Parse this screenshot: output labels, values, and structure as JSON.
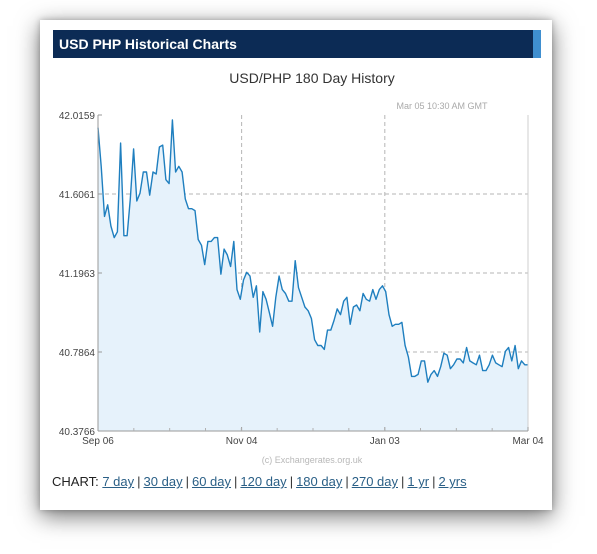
{
  "header": {
    "title": "USD PHP Historical Charts"
  },
  "chart_data": {
    "type": "area",
    "title": "USD/PHP  180 Day History",
    "timestamp": "Mar 05  10:30 AM GMT",
    "watermark": "(c) Exchangerates.org.uk",
    "x_tick_labels": [
      "Sep 06",
      "Nov 04",
      "Jan 03",
      "Mar 04"
    ],
    "y_tick_labels": [
      "42.0159",
      "41.6061",
      "41.1963",
      "40.7864",
      "40.3766"
    ],
    "ylim": [
      40.3766,
      42.0159
    ],
    "grid": true,
    "colors": {
      "line": "#1f7fbf",
      "fill": "#e6f2fb",
      "grid": "#b5b5b5"
    },
    "series": [
      {
        "values": [
          41.95,
          41.75,
          41.49,
          41.55,
          41.44,
          41.38,
          41.41,
          41.87,
          41.39,
          41.39,
          41.58,
          41.84,
          41.57,
          41.61,
          41.72,
          41.72,
          41.6,
          41.72,
          41.71,
          41.85,
          41.86,
          41.68,
          41.66,
          41.99,
          41.72,
          41.75,
          41.72,
          41.58,
          41.53,
          41.53,
          41.52,
          41.37,
          41.34,
          41.24,
          41.36,
          41.36,
          41.38,
          41.38,
          41.19,
          41.32,
          41.29,
          41.23,
          41.36,
          41.11,
          41.06,
          41.16,
          41.2,
          41.18,
          41.07,
          41.13,
          40.89,
          41.1,
          41.06,
          40.99,
          40.92,
          41.07,
          41.18,
          41.11,
          41.09,
          41.05,
          41.05,
          41.26,
          41.12,
          41.07,
          41.02,
          41.0,
          40.96,
          40.85,
          40.82,
          40.82,
          40.8,
          40.9,
          40.9,
          40.95,
          41.01,
          40.98,
          41.05,
          41.07,
          40.93,
          41.02,
          41.03,
          41.0,
          41.09,
          41.06,
          41.05,
          41.11,
          41.06,
          41.11,
          41.13,
          41.1,
          40.98,
          40.92,
          40.93,
          40.93,
          40.94,
          40.82,
          40.76,
          40.66,
          40.66,
          40.67,
          40.74,
          40.74,
          40.63,
          40.67,
          40.69,
          40.66,
          40.71,
          40.78,
          40.77,
          40.7,
          40.72,
          40.75,
          40.75,
          40.73,
          40.81,
          40.74,
          40.73,
          40.72,
          40.77,
          40.69,
          40.69,
          40.72,
          40.77,
          40.73,
          40.72,
          40.71,
          40.79,
          40.81,
          40.74,
          40.82,
          40.7,
          40.74,
          40.72,
          40.72
        ]
      }
    ]
  },
  "links": {
    "prefix": "CHART:",
    "items": [
      "7 day",
      "30 day",
      "60 day",
      "120 day",
      "180 day",
      "270 day",
      "1 yr",
      "2 yrs"
    ]
  }
}
